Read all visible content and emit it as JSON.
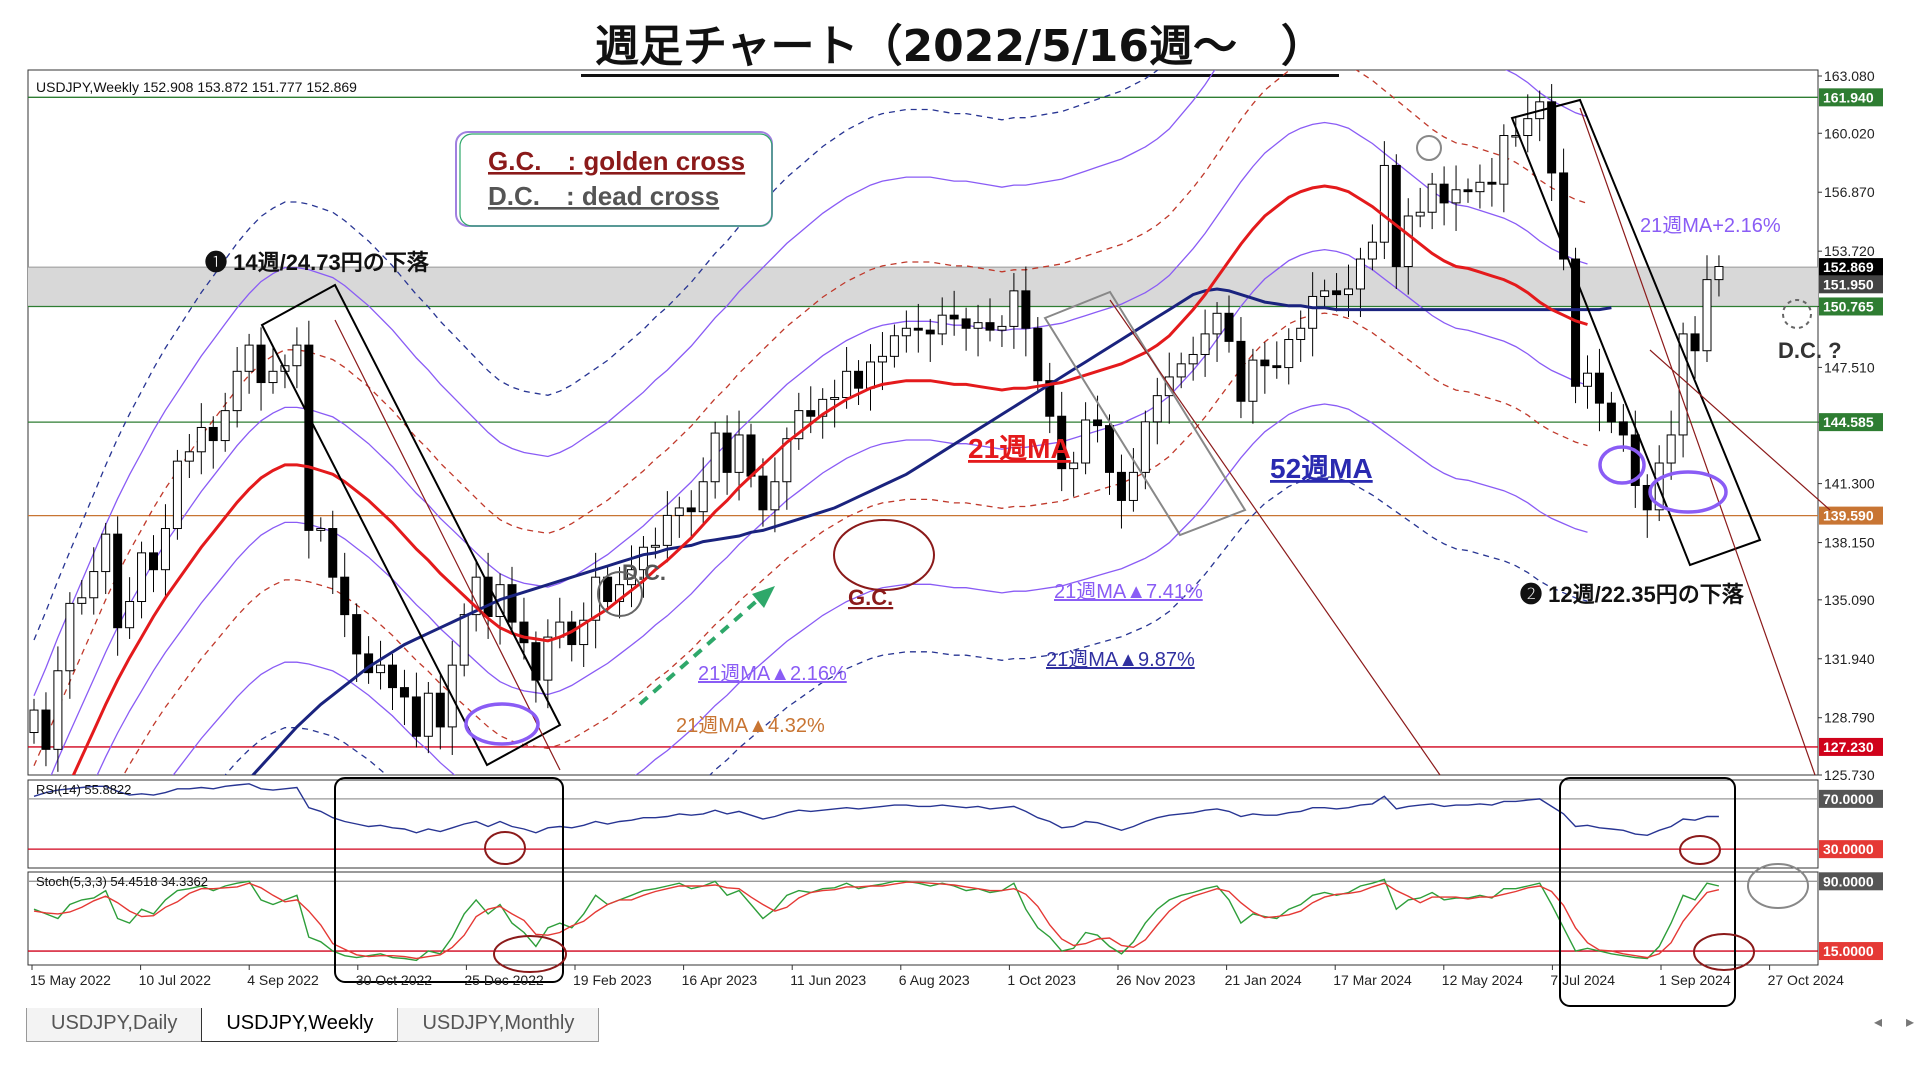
{
  "page_title": "週足チャート（2022/5/16週～　）",
  "chart_data": {
    "type": "candlestick",
    "symbol_info": "USDJPY,Weekly  152.908 153.872 151.777 152.869",
    "price_labels": [
      "163.080",
      "160.020",
      "156.870",
      "153.720",
      "150.765",
      "147.510",
      "144.585",
      "141.300",
      "138.150",
      "135.090",
      "131.940",
      "128.790",
      "125.730"
    ],
    "date_labels": [
      "15 May 2022",
      "10 Jul 2022",
      "4 Sep 2022",
      "30 Oct 2022",
      "25 Dec 2022",
      "19 Feb 2023",
      "16 Apr 2023",
      "11 Jun 2023",
      "6 Aug 2023",
      "1 Oct 2023",
      "26 Nov 2023",
      "21 Jan 2024",
      "17 Mar 2024",
      "12 May 2024",
      "7 Jul 2024",
      "1 Sep 2024",
      "27 Oct 2024"
    ],
    "ylim": [
      125.73,
      163.08
    ],
    "level_badges": [
      {
        "value": 161.94,
        "label": "161.940",
        "color": "#2e7d32"
      },
      {
        "value": 152.869,
        "label": "152.869",
        "color": "#000000"
      },
      {
        "value": 151.95,
        "label": "151.950",
        "color": "#444444"
      },
      {
        "value": 150.765,
        "label": "150.765",
        "color": "#2e7d32"
      },
      {
        "value": 144.585,
        "label": "144.585",
        "color": "#2e7d32"
      },
      {
        "value": 139.59,
        "label": "139.590",
        "color": "#c87533"
      },
      {
        "value": 127.23,
        "label": "127.230",
        "color": "#d0021b"
      }
    ],
    "closes": [
      129.2,
      127.1,
      131.3,
      134.9,
      135.2,
      136.6,
      138.6,
      133.6,
      135.0,
      137.6,
      136.7,
      138.9,
      142.5,
      143.0,
      144.3,
      143.6,
      145.2,
      147.3,
      148.7,
      146.7,
      147.3,
      147.6,
      148.7,
      138.8,
      138.9,
      136.3,
      134.3,
      132.2,
      131.2,
      131.6,
      130.4,
      129.9,
      127.8,
      130.1,
      128.3,
      131.6,
      134.3,
      136.3,
      134.2,
      135.9,
      133.9,
      132.8,
      130.8,
      133.1,
      133.9,
      132.7,
      134.0,
      136.3,
      135.0,
      135.9,
      136.7,
      137.9,
      138.0,
      139.6,
      140.0,
      139.8,
      141.4,
      144.0,
      141.9,
      143.9,
      141.7,
      139.9,
      141.4,
      143.7,
      145.2,
      144.9,
      145.8,
      145.9,
      147.3,
      146.4,
      147.8,
      148.1,
      149.2,
      149.6,
      149.5,
      149.3,
      150.3,
      150.1,
      149.6,
      149.9,
      149.5,
      149.7,
      151.6,
      149.6,
      146.8,
      144.9,
      142.1,
      142.4,
      144.7,
      144.4,
      141.9,
      140.4,
      141.9,
      144.6,
      146.0,
      147.0,
      147.7,
      148.2,
      149.3,
      150.4,
      148.9,
      145.7,
      147.9,
      147.6,
      147.5,
      149.0,
      149.6,
      151.3,
      151.6,
      151.4,
      151.7,
      153.3,
      154.2,
      158.3,
      152.9,
      155.6,
      155.8,
      157.3,
      156.3,
      157.0,
      156.9,
      157.4,
      157.3,
      159.9,
      159.9,
      160.8,
      161.7,
      157.9,
      153.3,
      146.5,
      147.2,
      145.6,
      144.6,
      143.9,
      141.2,
      139.9,
      142.4,
      143.9,
      149.3,
      148.4,
      152.2,
      152.9
    ],
    "ma21": [
      121.0,
      122.4,
      123.9,
      125.3,
      126.7,
      128.1,
      129.5,
      130.8,
      132.0,
      133.1,
      134.2,
      135.2,
      136.1,
      137.0,
      137.9,
      138.7,
      139.5,
      140.3,
      141.0,
      141.6,
      142.0,
      142.3,
      142.3,
      142.2,
      142.0,
      141.8,
      141.4,
      140.9,
      140.4,
      139.8,
      139.2,
      138.5,
      137.8,
      137.2,
      136.5,
      135.9,
      135.3,
      134.7,
      134.1,
      133.6,
      133.3,
      133.1,
      133.0,
      132.9,
      133.1,
      133.4,
      133.8,
      134.2,
      134.6,
      135.1,
      135.6,
      136.1,
      136.7,
      137.2,
      137.8,
      138.4,
      139.1,
      139.8,
      140.4,
      141.1,
      141.7,
      142.3,
      142.9,
      143.5,
      144.0,
      144.5,
      145.0,
      145.4,
      145.8,
      146.1,
      146.4,
      146.6,
      146.7,
      146.8,
      146.8,
      146.8,
      146.7,
      146.6,
      146.6,
      146.5,
      146.4,
      146.3,
      146.4,
      146.4,
      146.5,
      146.6,
      146.7,
      146.9,
      147.1,
      147.3,
      147.5,
      147.7,
      148.0,
      148.3,
      148.7,
      149.2,
      149.9,
      150.6,
      151.4,
      152.3,
      153.2,
      154.1,
      154.9,
      155.6,
      156.1,
      156.6,
      156.9,
      157.1,
      157.2,
      157.1,
      156.9,
      156.5,
      156.1,
      155.6,
      155.1,
      154.6,
      154.1,
      153.6,
      153.2,
      152.9,
      152.8,
      152.6,
      152.4,
      152.2,
      151.9,
      151.5,
      151.0,
      150.6,
      150.3,
      150.0,
      149.8
    ],
    "ma52": [
      113.0,
      113.6,
      114.3,
      115.0,
      115.7,
      116.4,
      117.1,
      117.8,
      118.5,
      119.2,
      119.9,
      120.6,
      121.3,
      122.0,
      122.7,
      123.4,
      124.1,
      124.8,
      125.5,
      126.2,
      126.9,
      127.6,
      128.3,
      128.9,
      129.5,
      130.0,
      130.5,
      131.0,
      131.5,
      131.9,
      132.3,
      132.7,
      133.0,
      133.3,
      133.6,
      133.9,
      134.2,
      134.5,
      134.8,
      135.1,
      135.3,
      135.5,
      135.7,
      135.9,
      136.1,
      136.3,
      136.5,
      136.7,
      136.9,
      137.1,
      137.3,
      137.5,
      137.6,
      137.8,
      137.9,
      138.0,
      138.2,
      138.3,
      138.4,
      138.5,
      138.7,
      138.8,
      139.0,
      139.2,
      139.4,
      139.6,
      139.8,
      140.0,
      140.3,
      140.6,
      140.9,
      141.2,
      141.5,
      141.8,
      142.2,
      142.6,
      143.0,
      143.4,
      143.8,
      144.2,
      144.6,
      145.0,
      145.4,
      145.8,
      146.2,
      146.6,
      147.0,
      147.4,
      147.8,
      148.2,
      148.6,
      149.0,
      149.4,
      149.8,
      150.2,
      150.6,
      151.0,
      151.4,
      151.6,
      151.7,
      151.6,
      151.4,
      151.2,
      151.0,
      150.9,
      150.8,
      150.8,
      150.7,
      150.7,
      150.6,
      150.6,
      150.6,
      150.6,
      150.6,
      150.6,
      150.6,
      150.6,
      150.6,
      150.6,
      150.6,
      150.6,
      150.6,
      150.6,
      150.6,
      150.6,
      150.6,
      150.6,
      150.6,
      150.6,
      150.6,
      150.6,
      150.6,
      150.7
    ],
    "series": [
      {
        "name": "21週MA",
        "color": "#e41a1c"
      },
      {
        "name": "52週MA",
        "color": "#1a237e"
      }
    ],
    "rsi": {
      "label": "RSI(14) 55.8822",
      "levels": [
        {
          "label": "70.0000",
          "value": 70
        },
        {
          "label": "30.0000",
          "value": 30
        }
      ],
      "values": [
        72,
        75,
        77,
        78,
        79,
        80,
        80,
        76,
        73,
        74,
        73,
        75,
        78,
        78,
        79,
        78,
        80,
        81,
        82,
        78,
        77,
        78,
        79,
        63,
        60,
        55,
        52,
        50,
        48,
        49,
        47,
        46,
        43,
        46,
        44,
        47,
        50,
        52,
        48,
        52,
        48,
        46,
        43,
        47,
        48,
        47,
        49,
        52,
        50,
        52,
        53,
        55,
        55,
        56,
        58,
        57,
        58,
        61,
        58,
        60,
        57,
        54,
        56,
        59,
        61,
        60,
        61,
        62,
        63,
        62,
        63,
        64,
        65,
        65,
        64,
        64,
        65,
        64,
        63,
        64,
        62,
        63,
        64,
        60,
        55,
        52,
        47,
        48,
        52,
        51,
        48,
        45,
        48,
        52,
        55,
        57,
        58,
        59,
        61,
        62,
        60,
        56,
        58,
        57,
        57,
        59,
        60,
        63,
        63,
        62,
        63,
        65,
        66,
        72,
        62,
        64,
        65,
        66,
        64,
        65,
        65,
        66,
        65,
        68,
        68,
        69,
        70,
        64,
        58,
        48,
        49,
        47,
        46,
        45,
        42,
        41,
        45,
        48,
        54,
        53,
        56,
        56
      ]
    },
    "stoch": {
      "label": "Stoch(5,3,3) 54.4518 34.3362",
      "levels": [
        {
          "label": "90.0000",
          "value": 90
        },
        {
          "label": "15.0000",
          "value": 15
        }
      ],
      "k": [
        60,
        55,
        50,
        65,
        70,
        72,
        80,
        50,
        45,
        60,
        55,
        70,
        80,
        82,
        85,
        80,
        85,
        88,
        90,
        70,
        65,
        70,
        75,
        30,
        25,
        15,
        10,
        8,
        10,
        12,
        8,
        7,
        5,
        15,
        12,
        30,
        55,
        70,
        55,
        65,
        45,
        35,
        20,
        40,
        45,
        40,
        55,
        75,
        65,
        70,
        75,
        80,
        82,
        85,
        88,
        82,
        85,
        90,
        75,
        80,
        65,
        50,
        60,
        75,
        80,
        78,
        82,
        83,
        88,
        82,
        85,
        87,
        90,
        90,
        88,
        85,
        88,
        85,
        80,
        82,
        78,
        80,
        88,
        60,
        40,
        30,
        15,
        18,
        35,
        32,
        20,
        12,
        25,
        45,
        60,
        70,
        75,
        78,
        82,
        85,
        70,
        45,
        55,
        52,
        50,
        60,
        65,
        75,
        78,
        75,
        78,
        85,
        88,
        92,
        60,
        70,
        72,
        78,
        70,
        72,
        72,
        75,
        72,
        82,
        82,
        85,
        88,
        65,
        40,
        15,
        18,
        15,
        12,
        10,
        8,
        7,
        20,
        45,
        75,
        70,
        88,
        85
      ],
      "d": [
        58,
        56,
        55,
        57,
        62,
        69,
        74,
        67,
        58,
        52,
        53,
        62,
        68,
        77,
        82,
        82,
        83,
        84,
        88,
        83,
        75,
        68,
        70,
        58,
        43,
        23,
        17,
        11,
        9,
        10,
        10,
        9,
        7,
        9,
        11,
        19,
        32,
        52,
        60,
        63,
        55,
        48,
        33,
        32,
        35,
        42,
        47,
        57,
        65,
        70,
        70,
        75,
        79,
        82,
        85,
        85,
        85,
        86,
        83,
        82,
        73,
        65,
        58,
        62,
        72,
        78,
        80,
        81,
        84,
        84,
        85,
        85,
        87,
        89,
        89,
        88,
        87,
        86,
        84,
        82,
        80,
        80,
        82,
        76,
        63,
        43,
        28,
        21,
        23,
        28,
        29,
        21,
        19,
        27,
        43,
        58,
        68,
        74,
        78,
        82,
        79,
        67,
        57,
        51,
        52,
        54,
        58,
        67,
        73,
        76,
        77,
        79,
        84,
        88,
        80,
        74,
        67,
        73,
        73,
        73,
        71,
        73,
        73,
        76,
        79,
        83,
        85,
        79,
        64,
        40,
        24,
        16,
        15,
        12,
        10,
        8,
        12,
        24,
        47,
        63,
        78,
        81
      ]
    }
  },
  "annotations": {
    "legend_gc": "G.C.　: golden cross",
    "legend_dc": "D.C.　: dead cross",
    "drop1": "❶ 14週/24.73円の下落",
    "drop2": "❷ 12週/22.35円の下落",
    "ma21_label": "21週MA",
    "ma52_label": "52週MA",
    "dc_mid": "D.C.",
    "gc_mid": "G.C.",
    "dc_question": "D.C. ?",
    "band_plus216": "21週MA+2.16%",
    "band_minus216": "21週MA▲2.16%",
    "band_minus432": "21週MA▲4.32%",
    "band_minus741": "21週MA▲7.41%",
    "band_minus987": "21週MA▲9.87%"
  },
  "tabs": [
    "USDJPY,Daily",
    "USDJPY,Weekly",
    "USDJPY,Monthly"
  ],
  "active_tab": "USDJPY,Weekly",
  "colors": {
    "up": "#ffffff",
    "down": "#000000",
    "ma21": "#e41a1c",
    "ma52": "#1a237e",
    "band_purple": "#8a5cf5",
    "band_red_dash": "#c0392b",
    "band_navy_dash": "#283593",
    "hline_green": "#2e7d32",
    "hline_orange": "#c87533",
    "hline_red": "#d0021b",
    "rsi_line": "#283593",
    "stoch_k": "#2e9e3a",
    "stoch_d": "#e53935"
  }
}
